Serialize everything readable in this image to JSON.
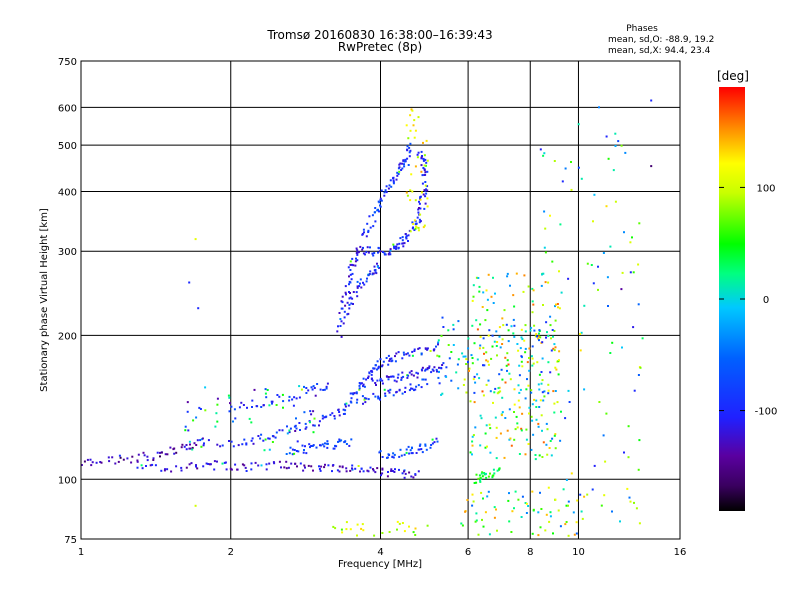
{
  "chart_data": {
    "type": "scatter",
    "title": "Tromsø 20160830 16:38:00–16:39:43",
    "subtitle": "RwPretec (8p)",
    "xlabel": "Frequency [MHz]",
    "ylabel": "Stationary phase Virtual Height [km]",
    "x_scale": "log",
    "y_scale": "log",
    "xlim": [
      1,
      16
    ],
    "ylim": [
      75,
      750
    ],
    "x_ticks": [
      1,
      2,
      4,
      6,
      8,
      10,
      16
    ],
    "x_tick_labels": [
      "1",
      "2",
      "4",
      "6",
      "8",
      "10",
      "16"
    ],
    "y_ticks": [
      75,
      100,
      200,
      300,
      400,
      500,
      600,
      750
    ],
    "y_tick_labels": [
      "75",
      "100",
      "200",
      "300",
      "400",
      "500",
      "600",
      "750"
    ],
    "grid": true,
    "phases_box": {
      "title": "Phases",
      "line_o": "mean, sd,O: -88.9, 19.2",
      "line_x": "mean, sd,X: 94.4, 23.4"
    },
    "colorbar": {
      "label": "[deg]",
      "ticks": [
        100,
        0,
        -100
      ],
      "tick_labels": [
        "100",
        "0",
        "-100"
      ],
      "range": [
        -190,
        190
      ],
      "colormap": "rainbow (black-purple-blue-cyan-green-yellow-orange-red)"
    },
    "traces": [
      {
        "kind": "line",
        "points": [
          [
            1.0,
            108
          ],
          [
            1.2,
            110
          ],
          [
            1.4,
            112
          ],
          [
            1.6,
            116
          ],
          [
            1.8,
            120
          ]
        ],
        "phase": -140
      },
      {
        "kind": "line",
        "points": [
          [
            1.3,
            105
          ],
          [
            1.6,
            106
          ],
          [
            1.9,
            107
          ],
          [
            2.2,
            106
          ],
          [
            2.6,
            107
          ],
          [
            3.0,
            106
          ],
          [
            3.4,
            105
          ],
          [
            3.8,
            104
          ],
          [
            4.3,
            103
          ],
          [
            4.8,
            102
          ]
        ],
        "phase": -120
      },
      {
        "kind": "line",
        "points": [
          [
            1.9,
            118
          ],
          [
            2.3,
            122
          ],
          [
            2.7,
            128
          ],
          [
            3.1,
            134
          ],
          [
            3.4,
            140
          ],
          [
            3.6,
            155
          ],
          [
            3.8,
            165
          ],
          [
            4.0,
            175
          ],
          [
            4.3,
            180
          ],
          [
            4.8,
            186
          ],
          [
            5.2,
            190
          ]
        ],
        "phase": -95
      },
      {
        "kind": "line",
        "points": [
          [
            2.6,
            114
          ],
          [
            2.9,
            116
          ],
          [
            3.2,
            118
          ],
          [
            3.5,
            120
          ]
        ],
        "phase": -80
      },
      {
        "kind": "line",
        "points": [
          [
            2.0,
            140
          ],
          [
            2.4,
            146
          ],
          [
            2.8,
            152
          ],
          [
            3.2,
            158
          ]
        ],
        "phase": -90
      },
      {
        "kind": "line",
        "points": [
          [
            3.6,
            145
          ],
          [
            4.0,
            150
          ],
          [
            4.5,
            155
          ],
          [
            5.0,
            160
          ]
        ],
        "phase": -90
      },
      {
        "kind": "line",
        "points": [
          [
            3.8,
            160
          ],
          [
            4.2,
            162
          ],
          [
            4.6,
            165
          ],
          [
            5.0,
            170
          ],
          [
            5.4,
            172
          ]
        ],
        "phase": -100
      },
      {
        "kind": "line",
        "points": [
          [
            4.0,
            112
          ],
          [
            4.4,
            114
          ],
          [
            4.8,
            116
          ],
          [
            5.2,
            120
          ]
        ],
        "phase": -85
      },
      {
        "kind": "line",
        "points": [
          [
            3.3,
            200
          ],
          [
            3.4,
            240
          ],
          [
            3.5,
            275
          ],
          [
            3.6,
            300
          ],
          [
            3.9,
            300
          ],
          [
            4.2,
            300
          ],
          [
            4.4,
            310
          ],
          [
            4.6,
            330
          ],
          [
            4.8,
            360
          ],
          [
            4.9,
            400
          ],
          [
            4.9,
            450
          ],
          [
            4.8,
            490
          ]
        ],
        "phase": -105
      },
      {
        "kind": "line",
        "points": [
          [
            3.7,
            320
          ],
          [
            3.9,
            360
          ],
          [
            4.1,
            400
          ],
          [
            4.3,
            430
          ],
          [
            4.5,
            460
          ],
          [
            4.6,
            500
          ]
        ],
        "phase": -90
      },
      {
        "kind": "line",
        "points": [
          [
            3.4,
            220
          ],
          [
            3.6,
            250
          ],
          [
            3.8,
            270
          ],
          [
            4.0,
            280
          ]
        ],
        "phase": -100
      },
      {
        "kind": "line",
        "points": [
          [
            6.2,
            100
          ],
          [
            6.5,
            102
          ],
          [
            7.0,
            104
          ]
        ],
        "phase": 40
      },
      {
        "kind": "cloud",
        "xrange": [
          6.0,
          9.2
        ],
        "yrange": [
          110,
          270
        ],
        "count": 220,
        "phase_range": [
          -40,
          170
        ]
      },
      {
        "kind": "cloud",
        "xrange": [
          5.2,
          9.0
        ],
        "yrange": [
          150,
          220
        ],
        "count": 110,
        "phase_range": [
          -110,
          120
        ]
      },
      {
        "kind": "cloud",
        "xrange": [
          4.5,
          5.0
        ],
        "yrange": [
          320,
          600
        ],
        "count": 40,
        "phase_range": [
          80,
          150
        ]
      },
      {
        "kind": "cloud",
        "xrange": [
          10.0,
          13.5
        ],
        "yrange": [
          80,
          610
        ],
        "count": 70,
        "phase_range": [
          -120,
          140
        ]
      },
      {
        "kind": "cloud",
        "xrange": [
          8.4,
          9.7
        ],
        "yrange": [
          80,
          500
        ],
        "count": 40,
        "phase_range": [
          -110,
          130
        ]
      },
      {
        "kind": "cloud",
        "xrange": [
          5.8,
          10.5
        ],
        "yrange": [
          76,
          95
        ],
        "count": 70,
        "phase_range": [
          -60,
          150
        ]
      },
      {
        "kind": "cloud",
        "xrange": [
          3.2,
          5.0
        ],
        "yrange": [
          76,
          82
        ],
        "count": 25,
        "phase_range": [
          60,
          140
        ]
      },
      {
        "kind": "cloud",
        "xrange": [
          1.6,
          3.0
        ],
        "yrange": [
          112,
          160
        ],
        "count": 60,
        "phase_range": [
          -140,
          80
        ]
      }
    ],
    "isolated_points": [
      {
        "x": 1.65,
        "y": 258,
        "phase": -100
      },
      {
        "x": 1.72,
        "y": 228,
        "phase": -100
      },
      {
        "x": 1.7,
        "y": 88,
        "phase": 100
      },
      {
        "x": 1.7,
        "y": 318,
        "phase": 110
      },
      {
        "x": 8.4,
        "y": 490,
        "phase": -110
      },
      {
        "x": 9.3,
        "y": 420,
        "phase": -100
      },
      {
        "x": 14.0,
        "y": 620,
        "phase": -100
      },
      {
        "x": 14.0,
        "y": 452,
        "phase": -160
      },
      {
        "x": 12.2,
        "y": 250,
        "phase": -140
      },
      {
        "x": 11.0,
        "y": 600,
        "phase": -40
      }
    ]
  }
}
